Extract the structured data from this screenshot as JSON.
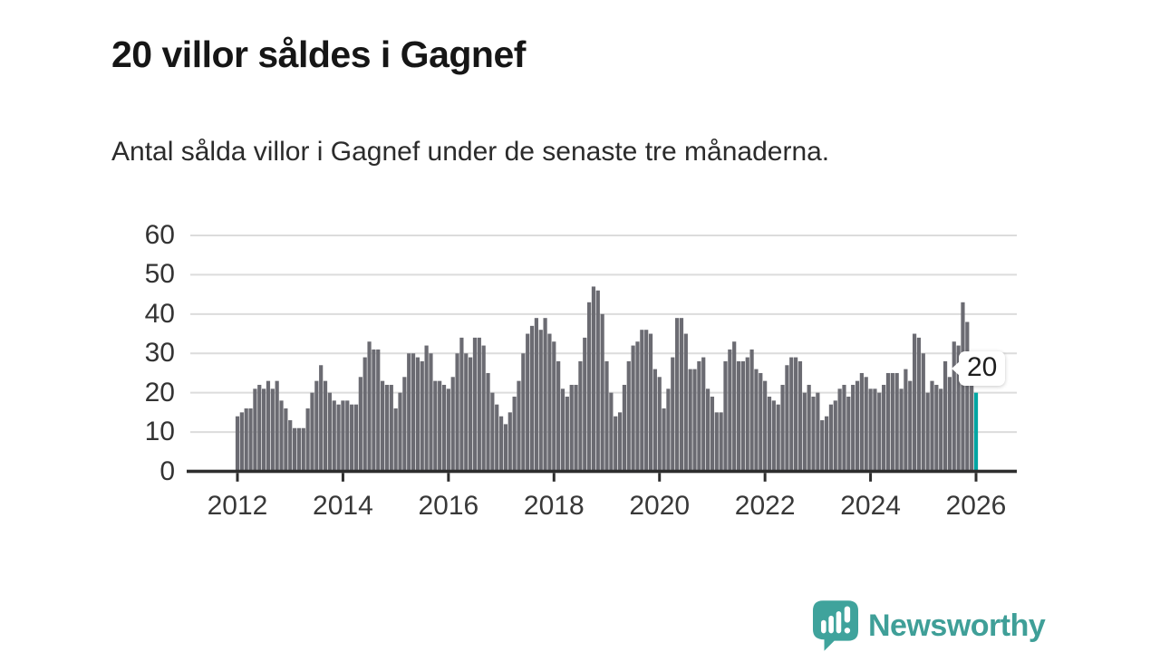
{
  "title": "20 villor såldes i Gagnef",
  "subtitle": "Antal sålda villor i Gagnef under de senaste tre månaderna.",
  "annotation": {
    "label": "20"
  },
  "footer": {
    "brand": "Newsworthy"
  },
  "colors": {
    "bar": "#6b6b72",
    "highlight": "#00a5a3",
    "axis": "#2d2d2d",
    "grid": "#dcdcdc",
    "tick_text": "#383838",
    "brand": "#3f9f98"
  },
  "chart_data": {
    "type": "bar",
    "title": "20 villor såldes i Gagnef",
    "xlabel": "",
    "ylabel": "",
    "ylim": [
      0,
      60
    ],
    "grid": "horizontal",
    "y_ticks": [
      60,
      50,
      40,
      30,
      20,
      10,
      0
    ],
    "x_tick_labels": [
      "2012",
      "2014",
      "2016",
      "2018",
      "2020",
      "2022",
      "2024",
      "2026"
    ],
    "x_start": {
      "year": 2012,
      "month": 1
    },
    "x_end": {
      "year": 2026,
      "month": 1
    },
    "highlight_last": true,
    "highlight_value": 20,
    "values": [
      14,
      15,
      16,
      16,
      21,
      22,
      21,
      23,
      21,
      23,
      18,
      16,
      13,
      11,
      11,
      11,
      16,
      20,
      23,
      27,
      23,
      20,
      18,
      17,
      18,
      18,
      17,
      17,
      24,
      29,
      33,
      31,
      31,
      23,
      22,
      22,
      16,
      20,
      24,
      30,
      30,
      29,
      28,
      32,
      30,
      23,
      23,
      22,
      21,
      24,
      30,
      34,
      30,
      29,
      34,
      34,
      32,
      25,
      20,
      17,
      14,
      12,
      15,
      19,
      23,
      30,
      35,
      37,
      39,
      36,
      39,
      35,
      33,
      28,
      21,
      19,
      22,
      22,
      28,
      34,
      43,
      47,
      46,
      40,
      28,
      20,
      14,
      15,
      22,
      28,
      32,
      33,
      36,
      36,
      35,
      26,
      24,
      16,
      21,
      29,
      39,
      39,
      35,
      26,
      26,
      28,
      29,
      21,
      19,
      15,
      15,
      28,
      31,
      33,
      28,
      28,
      29,
      31,
      26,
      25,
      23,
      19,
      18,
      17,
      22,
      27,
      29,
      29,
      28,
      20,
      22,
      19,
      20,
      13,
      14,
      17,
      18,
      21,
      22,
      19,
      22,
      23,
      25,
      24,
      21,
      21,
      20,
      22,
      25,
      25,
      25,
      21,
      26,
      23,
      35,
      34,
      30,
      20,
      23,
      22,
      21,
      28,
      24,
      33,
      32,
      43,
      38,
      22,
      20
    ]
  }
}
